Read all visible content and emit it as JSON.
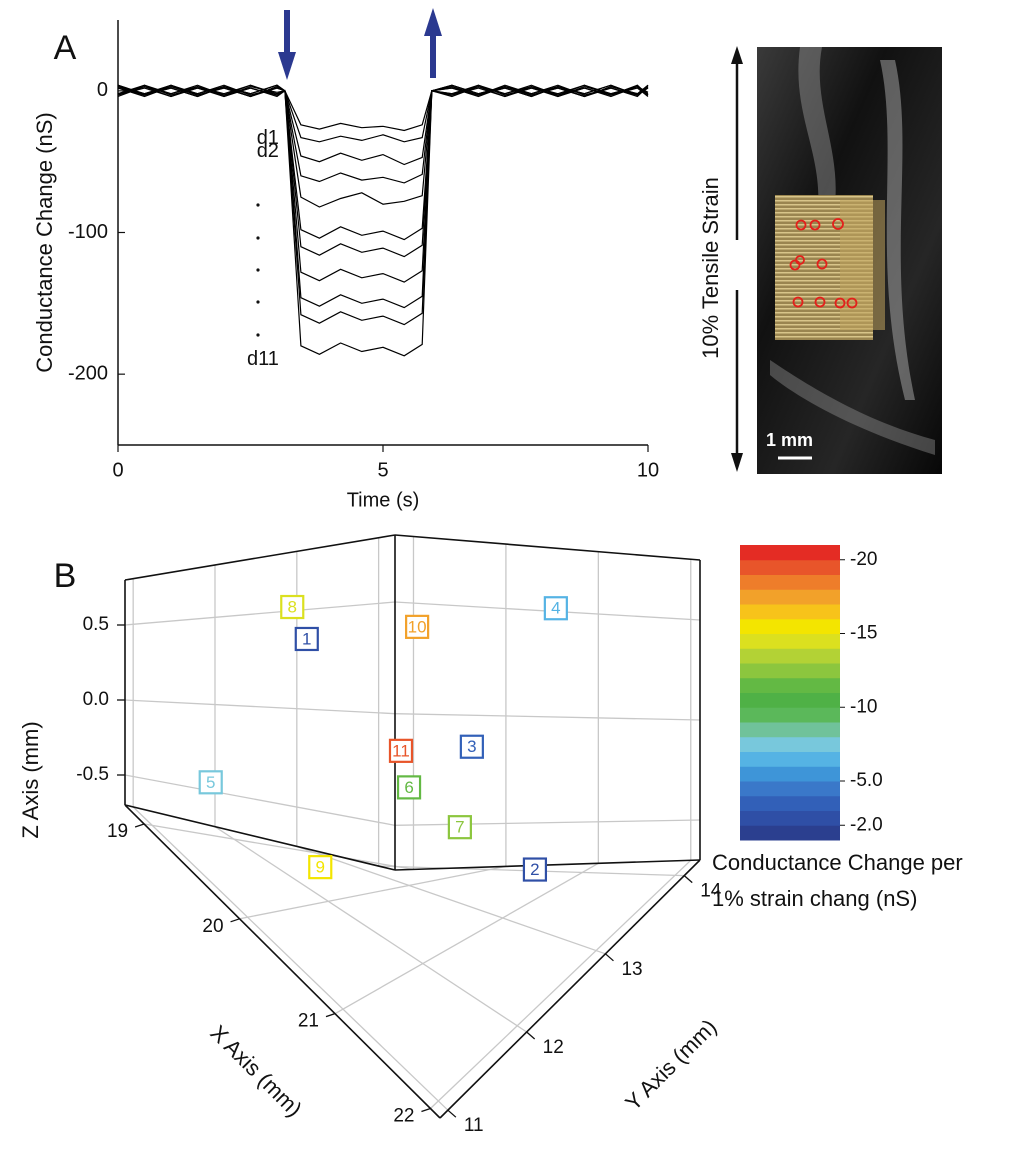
{
  "chart_data": [
    {
      "type": "line",
      "panel_label": "A",
      "xlabel": "Time (s)",
      "ylabel": "Conductance Change (nS)",
      "xlim": [
        0,
        10
      ],
      "xticks": [
        0,
        5,
        10
      ],
      "ylim": [
        -250,
        50
      ],
      "yticks": [
        0,
        -100,
        -200
      ],
      "color": "#000000",
      "x": [
        0,
        0.5,
        1,
        1.5,
        2,
        2.5,
        3,
        3.15,
        3.45,
        3.8,
        4.2,
        4.6,
        5.0,
        5.4,
        5.74,
        5.92,
        6.3,
        6.8,
        7.3,
        7.8,
        8.3,
        8.8,
        9.3,
        9.8,
        10
      ],
      "series": [
        {
          "name": "d1",
          "values": [
            3,
            -2,
            4,
            -3,
            2,
            -4,
            3,
            0,
            -24,
            -27,
            -23,
            -26,
            -25,
            -28,
            -24,
            0,
            3,
            -3,
            2,
            -4,
            3,
            -2,
            4,
            -3,
            2
          ]
        },
        {
          "name": "d2",
          "values": [
            -2,
            4,
            -3,
            2,
            -4,
            3,
            -1,
            0,
            -33,
            -36,
            -32,
            -35,
            -31,
            -36,
            -33,
            0,
            -2,
            4,
            -3,
            2,
            -4,
            3,
            -2,
            3,
            -1
          ]
        },
        {
          "values": [
            4,
            -3,
            2,
            -4,
            3,
            -2,
            4,
            0,
            -46,
            -50,
            -44,
            -49,
            -45,
            -52,
            -47,
            0,
            4,
            -2,
            3,
            -3,
            2,
            -4,
            3,
            -2,
            4
          ]
        },
        {
          "values": [
            -3,
            2,
            -4,
            3,
            -2,
            4,
            -3,
            0,
            -60,
            -64,
            -58,
            -63,
            -61,
            -65,
            -59,
            0,
            -3,
            2,
            -4,
            3,
            -2,
            4,
            -3,
            2,
            -4
          ]
        },
        {
          "values": [
            2,
            -4,
            3,
            -2,
            4,
            -3,
            2,
            0,
            -75,
            -82,
            -76,
            -72,
            -80,
            -78,
            -74,
            0,
            2,
            -4,
            3,
            -2,
            4,
            -3,
            2,
            -4,
            3
          ]
        },
        {
          "values": [
            -4,
            3,
            -2,
            4,
            -3,
            2,
            -4,
            0,
            -98,
            -104,
            -96,
            -102,
            -99,
            -105,
            -97,
            0,
            -4,
            3,
            -2,
            4,
            -3,
            2,
            -4,
            3,
            -2
          ]
        },
        {
          "values": [
            3,
            -3,
            2,
            -4,
            3,
            -2,
            4,
            0,
            -110,
            -116,
            -108,
            -114,
            -111,
            -117,
            -109,
            0,
            3,
            -3,
            2,
            -4,
            3,
            -2,
            4,
            -3,
            3
          ]
        },
        {
          "values": [
            -2,
            3,
            -4,
            2,
            -3,
            4,
            -2,
            0,
            -128,
            -134,
            -126,
            -132,
            -129,
            -135,
            -127,
            0,
            -2,
            3,
            -4,
            2,
            -3,
            4,
            -2,
            3,
            -3
          ]
        },
        {
          "values": [
            4,
            -2,
            3,
            -3,
            2,
            -4,
            3,
            0,
            -146,
            -152,
            -144,
            -150,
            -147,
            -153,
            -145,
            0,
            4,
            -2,
            3,
            -3,
            2,
            -4,
            3,
            -2,
            2
          ]
        },
        {
          "values": [
            -3,
            4,
            -2,
            3,
            -4,
            2,
            -3,
            0,
            -158,
            -164,
            -156,
            -162,
            -159,
            -165,
            -157,
            0,
            -3,
            4,
            -2,
            3,
            -4,
            2,
            -3,
            4,
            -3
          ]
        },
        {
          "name": "d11",
          "values": [
            2,
            -3,
            4,
            -2,
            3,
            -4,
            2,
            0,
            -180,
            -186,
            -178,
            -184,
            -181,
            -187,
            -179,
            0,
            2,
            -3,
            4,
            -2,
            3,
            -4,
            2,
            -3,
            4
          ]
        }
      ]
    },
    {
      "type": "scatter3d",
      "panel_label": "B",
      "xlabel": "X Axis (mm)",
      "ylabel": "Y Axis (mm)",
      "zlabel": "Z Axis (mm)",
      "xlim": [
        18.8,
        22.1
      ],
      "xticks": [
        19,
        20,
        21,
        22
      ],
      "ylim": [
        10.9,
        14.2
      ],
      "yticks": [
        11,
        12,
        13,
        14
      ],
      "zlim": [
        -0.7,
        0.8
      ],
      "zticks": [
        -0.5,
        {
          "value": 0,
          "label": "0.0"
        },
        0.5
      ],
      "grid": true,
      "labels": [
        "1",
        "2",
        "3",
        "4",
        "5",
        "6",
        "7",
        "8",
        "9",
        "10",
        "11"
      ],
      "x": [
        19.6,
        21.6,
        20.5,
        20.8,
        19.1,
        20.0,
        20.8,
        19.1,
        20.0,
        20.0,
        20.0
      ],
      "y": [
        12.2,
        12.7,
        13.2,
        13.9,
        11.6,
        13.0,
        12.7,
        12.6,
        11.9,
        13.1,
        12.9
      ],
      "z": [
        0.6,
        -0.25,
        0.05,
        0.6,
        -0.35,
        -0.2,
        -0.2,
        0.6,
        -0.5,
        0.6,
        0.0
      ],
      "values": [
        -2.5,
        -2.8,
        -3.2,
        -6.0,
        -7.0,
        -11.0,
        -12.0,
        -14.0,
        -15.5,
        -17.0,
        -19.5
      ],
      "colorbar": {
        "label": [
          "Conductance Change per",
          "1% strain chang (nS)"
        ],
        "clim": [
          -21,
          -1
        ],
        "ticks": [
          -20,
          -15,
          -10,
          {
            "value": -5,
            "label": "-5.0"
          },
          {
            "value": -2,
            "label": "-2.0"
          }
        ],
        "colormap": [
          "#2b3f8f",
          "#2f4fa6",
          "#3260b8",
          "#3a78c9",
          "#3e95d8",
          "#55b3e4",
          "#78c8dc",
          "#70c29a",
          "#5bb85a",
          "#4fb146",
          "#63b944",
          "#8cc63e",
          "#b3d235",
          "#dbe01f",
          "#f3e500",
          "#f7c31a",
          "#f2a12a",
          "#ee7d2a",
          "#e8552a",
          "#e42c24"
        ]
      }
    }
  ],
  "photo": {
    "strain_label": "10% Tensile Strain",
    "scale_bar": "1 mm"
  }
}
